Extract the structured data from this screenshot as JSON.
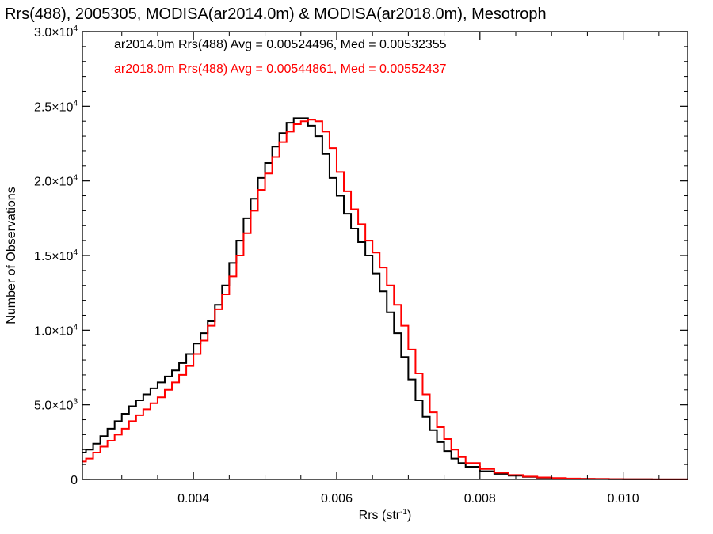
{
  "chart_data": {
    "type": "line",
    "title": "Rrs(488), 2005305, MODISA(ar2014.0m) & MODISA(ar2018.0m), Mesotroph",
    "xlabel": "Rrs (str",
    "xlabel_sup": "-1",
    "xlabel_suffix": ")",
    "ylabel": "Number of Observations",
    "xlim": [
      0.00245,
      0.0109
    ],
    "ylim": [
      0,
      30000
    ],
    "x_ticks": [
      {
        "value": 0.004,
        "label": "0.004"
      },
      {
        "value": 0.006,
        "label": "0.006"
      },
      {
        "value": 0.008,
        "label": "0.008"
      },
      {
        "value": 0.01,
        "label": "0.010"
      }
    ],
    "y_ticks": [
      {
        "value": 0,
        "mant": "0",
        "exp": ""
      },
      {
        "value": 5000,
        "mant": "5.0×10",
        "exp": "3"
      },
      {
        "value": 10000,
        "mant": "1.0×10",
        "exp": "4"
      },
      {
        "value": 15000,
        "mant": "1.5×10",
        "exp": "4"
      },
      {
        "value": 20000,
        "mant": "2.0×10",
        "exp": "4"
      },
      {
        "value": 25000,
        "mant": "2.5×10",
        "exp": "4"
      },
      {
        "value": 30000,
        "mant": "3.0×10",
        "exp": "4"
      }
    ],
    "grid": false,
    "legend_position": "top-left",
    "series": [
      {
        "name": "ar2014.0m",
        "color": "#000000",
        "legend": "ar2014.0m Rrs(488) Avg = 0.00524496, Med = 0.00532355",
        "x": [
          0.00245,
          0.0025,
          0.0026,
          0.0027,
          0.0028,
          0.0029,
          0.003,
          0.0031,
          0.0032,
          0.0033,
          0.0034,
          0.0035,
          0.0036,
          0.0037,
          0.0038,
          0.0039,
          0.004,
          0.0041,
          0.0042,
          0.0043,
          0.0044,
          0.0045,
          0.0046,
          0.0047,
          0.0048,
          0.0049,
          0.005,
          0.0051,
          0.0052,
          0.0053,
          0.0054,
          0.0055,
          0.0056,
          0.0057,
          0.0058,
          0.0059,
          0.006,
          0.0061,
          0.0062,
          0.0063,
          0.0064,
          0.0065,
          0.0066,
          0.0067,
          0.0068,
          0.0069,
          0.007,
          0.0071,
          0.0072,
          0.0073,
          0.0074,
          0.0075,
          0.0076,
          0.0077,
          0.0078,
          0.008,
          0.0082,
          0.0084,
          0.0086,
          0.0088,
          0.009,
          0.0092,
          0.0094,
          0.0096,
          0.0098,
          0.01,
          0.0102,
          0.0104,
          0.0106,
          0.0109
        ],
        "values": [
          1800,
          2000,
          2400,
          2900,
          3400,
          3900,
          4400,
          4900,
          5300,
          5700,
          6100,
          6500,
          6900,
          7300,
          7800,
          8400,
          9100,
          9800,
          10600,
          11700,
          13000,
          14500,
          16000,
          17500,
          18800,
          20200,
          21200,
          22300,
          23200,
          23900,
          24200,
          24200,
          23700,
          23000,
          21800,
          20200,
          19000,
          17800,
          16800,
          15900,
          15000,
          13800,
          12600,
          11200,
          9800,
          8200,
          6700,
          5300,
          4200,
          3300,
          2500,
          1900,
          1400,
          1100,
          850,
          550,
          380,
          250,
          170,
          110,
          80,
          55,
          40,
          30,
          20,
          15,
          10,
          8,
          6,
          5
        ]
      },
      {
        "name": "ar2018.0m",
        "color": "#ff0000",
        "legend": "ar2018.0m Rrs(488) Avg = 0.00544861, Med = 0.00552437",
        "x": [
          0.00245,
          0.0025,
          0.0026,
          0.0027,
          0.0028,
          0.0029,
          0.003,
          0.0031,
          0.0032,
          0.0033,
          0.0034,
          0.0035,
          0.0036,
          0.0037,
          0.0038,
          0.0039,
          0.004,
          0.0041,
          0.0042,
          0.0043,
          0.0044,
          0.0045,
          0.0046,
          0.0047,
          0.0048,
          0.0049,
          0.005,
          0.0051,
          0.0052,
          0.0053,
          0.0054,
          0.0055,
          0.0056,
          0.0057,
          0.0058,
          0.0059,
          0.006,
          0.0061,
          0.0062,
          0.0063,
          0.0064,
          0.0065,
          0.0066,
          0.0067,
          0.0068,
          0.0069,
          0.007,
          0.0071,
          0.0072,
          0.0073,
          0.0074,
          0.0075,
          0.0076,
          0.0077,
          0.0078,
          0.008,
          0.0082,
          0.0084,
          0.0086,
          0.0088,
          0.009,
          0.0092,
          0.0094,
          0.0096,
          0.0098,
          0.01,
          0.0102,
          0.0104,
          0.0106,
          0.0109
        ],
        "values": [
          1200,
          1400,
          1800,
          2200,
          2600,
          3000,
          3400,
          3900,
          4300,
          4700,
          5100,
          5500,
          6000,
          6500,
          7000,
          7600,
          8400,
          9300,
          10300,
          11400,
          12400,
          13600,
          15000,
          16500,
          18000,
          19400,
          20500,
          21600,
          22600,
          23300,
          23800,
          24000,
          24100,
          24000,
          23300,
          22200,
          20600,
          19300,
          18100,
          17100,
          16000,
          15200,
          14200,
          13000,
          11700,
          10300,
          8700,
          7100,
          5700,
          4500,
          3500,
          2700,
          2000,
          1500,
          1100,
          700,
          450,
          300,
          190,
          130,
          90,
          60,
          40,
          30,
          20,
          15,
          10,
          8,
          6,
          5
        ]
      }
    ]
  }
}
